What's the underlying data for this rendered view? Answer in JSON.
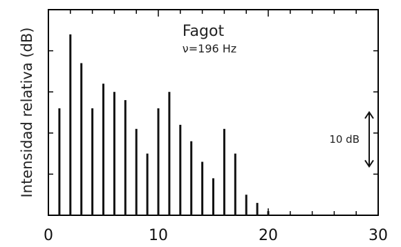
{
  "chart_data": {
    "type": "bar",
    "title": "Fagot",
    "subtitle": "ν=196 Hz",
    "ylabel": "Intensidad relativa (dB)",
    "xlabel": "",
    "xlim": [
      0,
      30
    ],
    "ylim": [
      0,
      50
    ],
    "x_ticks": [
      0,
      10,
      20,
      30
    ],
    "x_tick_labels": [
      "0",
      "10",
      "20",
      "30"
    ],
    "y_ticks": [
      10,
      20,
      30,
      40
    ],
    "x": [
      1,
      2,
      3,
      4,
      5,
      6,
      7,
      8,
      9,
      10,
      11,
      12,
      13,
      14,
      15,
      16,
      17,
      18,
      19,
      20
    ],
    "values": [
      26,
      44,
      37,
      26,
      32,
      30,
      28,
      21,
      15,
      26,
      30,
      22,
      18,
      13,
      9,
      21,
      15,
      5,
      3,
      1
    ],
    "scale_bar": {
      "label": "10 dB",
      "value": 10
    },
    "grid": false,
    "legend": "none"
  }
}
